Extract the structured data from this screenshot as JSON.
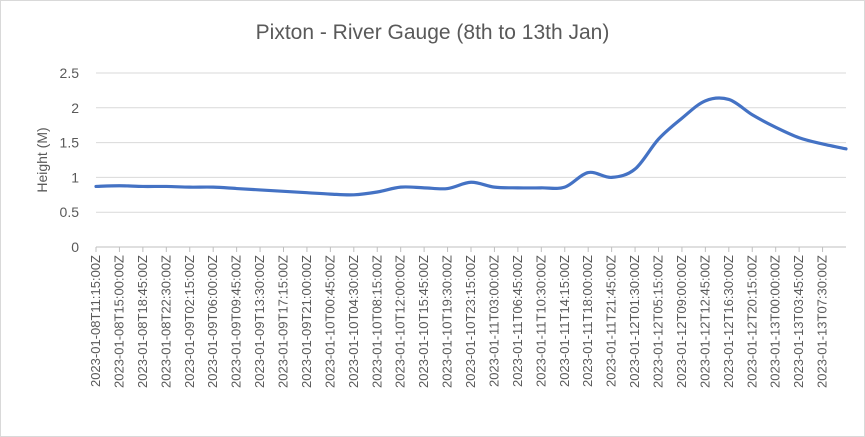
{
  "chart_data": {
    "type": "line",
    "title": "Pixton - River Gauge (8th to 13th Jan)",
    "ylabel": "Height (M)",
    "xlabel": "",
    "ylim": [
      0,
      2.5
    ],
    "yticks": [
      "0",
      "0.5",
      "1",
      "1.5",
      "2",
      "2.5"
    ],
    "grid": "horizontal",
    "legend": "none",
    "line_color": "#4472c4",
    "xticks": [
      "2023-01-08T11:15:00Z",
      "2023-01-08T15:00:00Z",
      "2023-01-08T18:45:00Z",
      "2023-01-08T22:30:00Z",
      "2023-01-09T02:15:00Z",
      "2023-01-09T06:00:00Z",
      "2023-01-09T09:45:00Z",
      "2023-01-09T13:30:00Z",
      "2023-01-09T17:15:00Z",
      "2023-01-09T21:00:00Z",
      "2023-01-10T00:45:00Z",
      "2023-01-10T04:30:00Z",
      "2023-01-10T08:15:00Z",
      "2023-01-10T12:00:00Z",
      "2023-01-10T15:45:00Z",
      "2023-01-10T19:30:00Z",
      "2023-01-10T23:15:00Z",
      "2023-01-11T03:00:00Z",
      "2023-01-11T06:45:00Z",
      "2023-01-11T10:30:00Z",
      "2023-01-11T14:15:00Z",
      "2023-01-11T18:00:00Z",
      "2023-01-11T21:45:00Z",
      "2023-01-12T01:30:00Z",
      "2023-01-12T05:15:00Z",
      "2023-01-12T09:00:00Z",
      "2023-01-12T12:45:00Z",
      "2023-01-12T16:30:00Z",
      "2023-01-12T20:15:00Z",
      "2023-01-13T00:00:00Z",
      "2023-01-13T03:45:00Z",
      "2023-01-13T07:30:00Z"
    ],
    "series": [
      {
        "x": [
          "2023-01-08T11:15:00Z",
          "2023-01-08T15:00:00Z",
          "2023-01-08T18:45:00Z",
          "2023-01-08T22:30:00Z",
          "2023-01-09T02:15:00Z",
          "2023-01-09T06:00:00Z",
          "2023-01-09T09:45:00Z",
          "2023-01-09T13:30:00Z",
          "2023-01-09T17:15:00Z",
          "2023-01-09T21:00:00Z",
          "2023-01-10T00:45:00Z",
          "2023-01-10T04:30:00Z",
          "2023-01-10T08:15:00Z",
          "2023-01-10T12:00:00Z",
          "2023-01-10T15:45:00Z",
          "2023-01-10T19:30:00Z",
          "2023-01-10T23:15:00Z",
          "2023-01-11T03:00:00Z",
          "2023-01-11T06:45:00Z",
          "2023-01-11T10:30:00Z",
          "2023-01-11T14:15:00Z",
          "2023-01-11T18:00:00Z",
          "2023-01-11T21:45:00Z",
          "2023-01-12T01:30:00Z",
          "2023-01-12T05:15:00Z",
          "2023-01-12T09:00:00Z",
          "2023-01-12T12:45:00Z",
          "2023-01-12T16:30:00Z",
          "2023-01-12T20:15:00Z",
          "2023-01-13T00:00:00Z",
          "2023-01-13T03:45:00Z",
          "2023-01-13T07:30:00Z",
          "2023-01-13T11:15:00Z"
        ],
        "values": [
          0.87,
          0.88,
          0.87,
          0.87,
          0.86,
          0.86,
          0.84,
          0.82,
          0.8,
          0.78,
          0.76,
          0.75,
          0.79,
          0.86,
          0.85,
          0.84,
          0.93,
          0.86,
          0.85,
          0.85,
          0.86,
          1.07,
          1.0,
          1.12,
          1.55,
          1.85,
          2.1,
          2.12,
          1.9,
          1.72,
          1.57,
          1.48,
          1.41
        ]
      }
    ]
  }
}
